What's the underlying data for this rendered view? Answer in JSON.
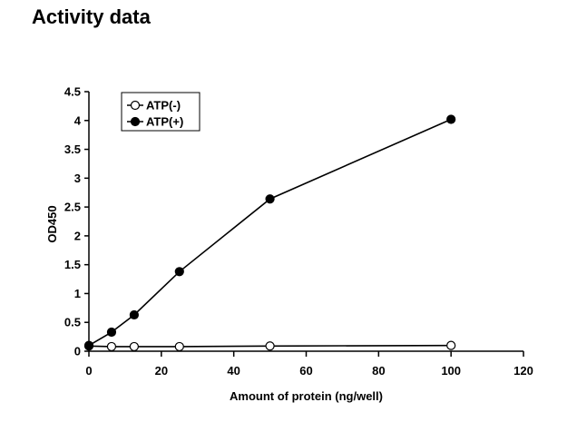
{
  "page": {
    "title": "Activity data"
  },
  "chart_data": {
    "type": "line",
    "title": "",
    "xlabel": "Amount of protein (ng/well)",
    "ylabel": "OD450",
    "xlim": [
      0,
      120
    ],
    "ylim": [
      0,
      4.5
    ],
    "xticks": [
      0,
      20,
      40,
      60,
      80,
      100,
      120
    ],
    "yticks": [
      0,
      0.5,
      1,
      1.5,
      2,
      2.5,
      3,
      3.5,
      4,
      4.5
    ],
    "xtick_labels": [
      "0",
      "20",
      "40",
      "60",
      "80",
      "100",
      "120"
    ],
    "ytick_labels": [
      "0",
      "0.5",
      "1",
      "1.5",
      "2",
      "2.5",
      "3",
      "3.5",
      "4",
      "4.5"
    ],
    "grid": false,
    "legend_position": "top-left",
    "series": [
      {
        "name": "ATP(-)",
        "marker": "open-circle",
        "x": [
          0,
          6.25,
          12.5,
          25,
          50,
          100
        ],
        "y": [
          0.09,
          0.08,
          0.08,
          0.08,
          0.09,
          0.1
        ]
      },
      {
        "name": "ATP(+)",
        "marker": "filled-circle",
        "x": [
          0,
          6.25,
          12.5,
          25,
          50,
          100
        ],
        "y": [
          0.1,
          0.33,
          0.63,
          1.38,
          2.64,
          4.02
        ]
      }
    ],
    "colors": {
      "line": "#000000",
      "open_marker_fill": "#ffffff",
      "filled_marker_fill": "#000000"
    }
  }
}
